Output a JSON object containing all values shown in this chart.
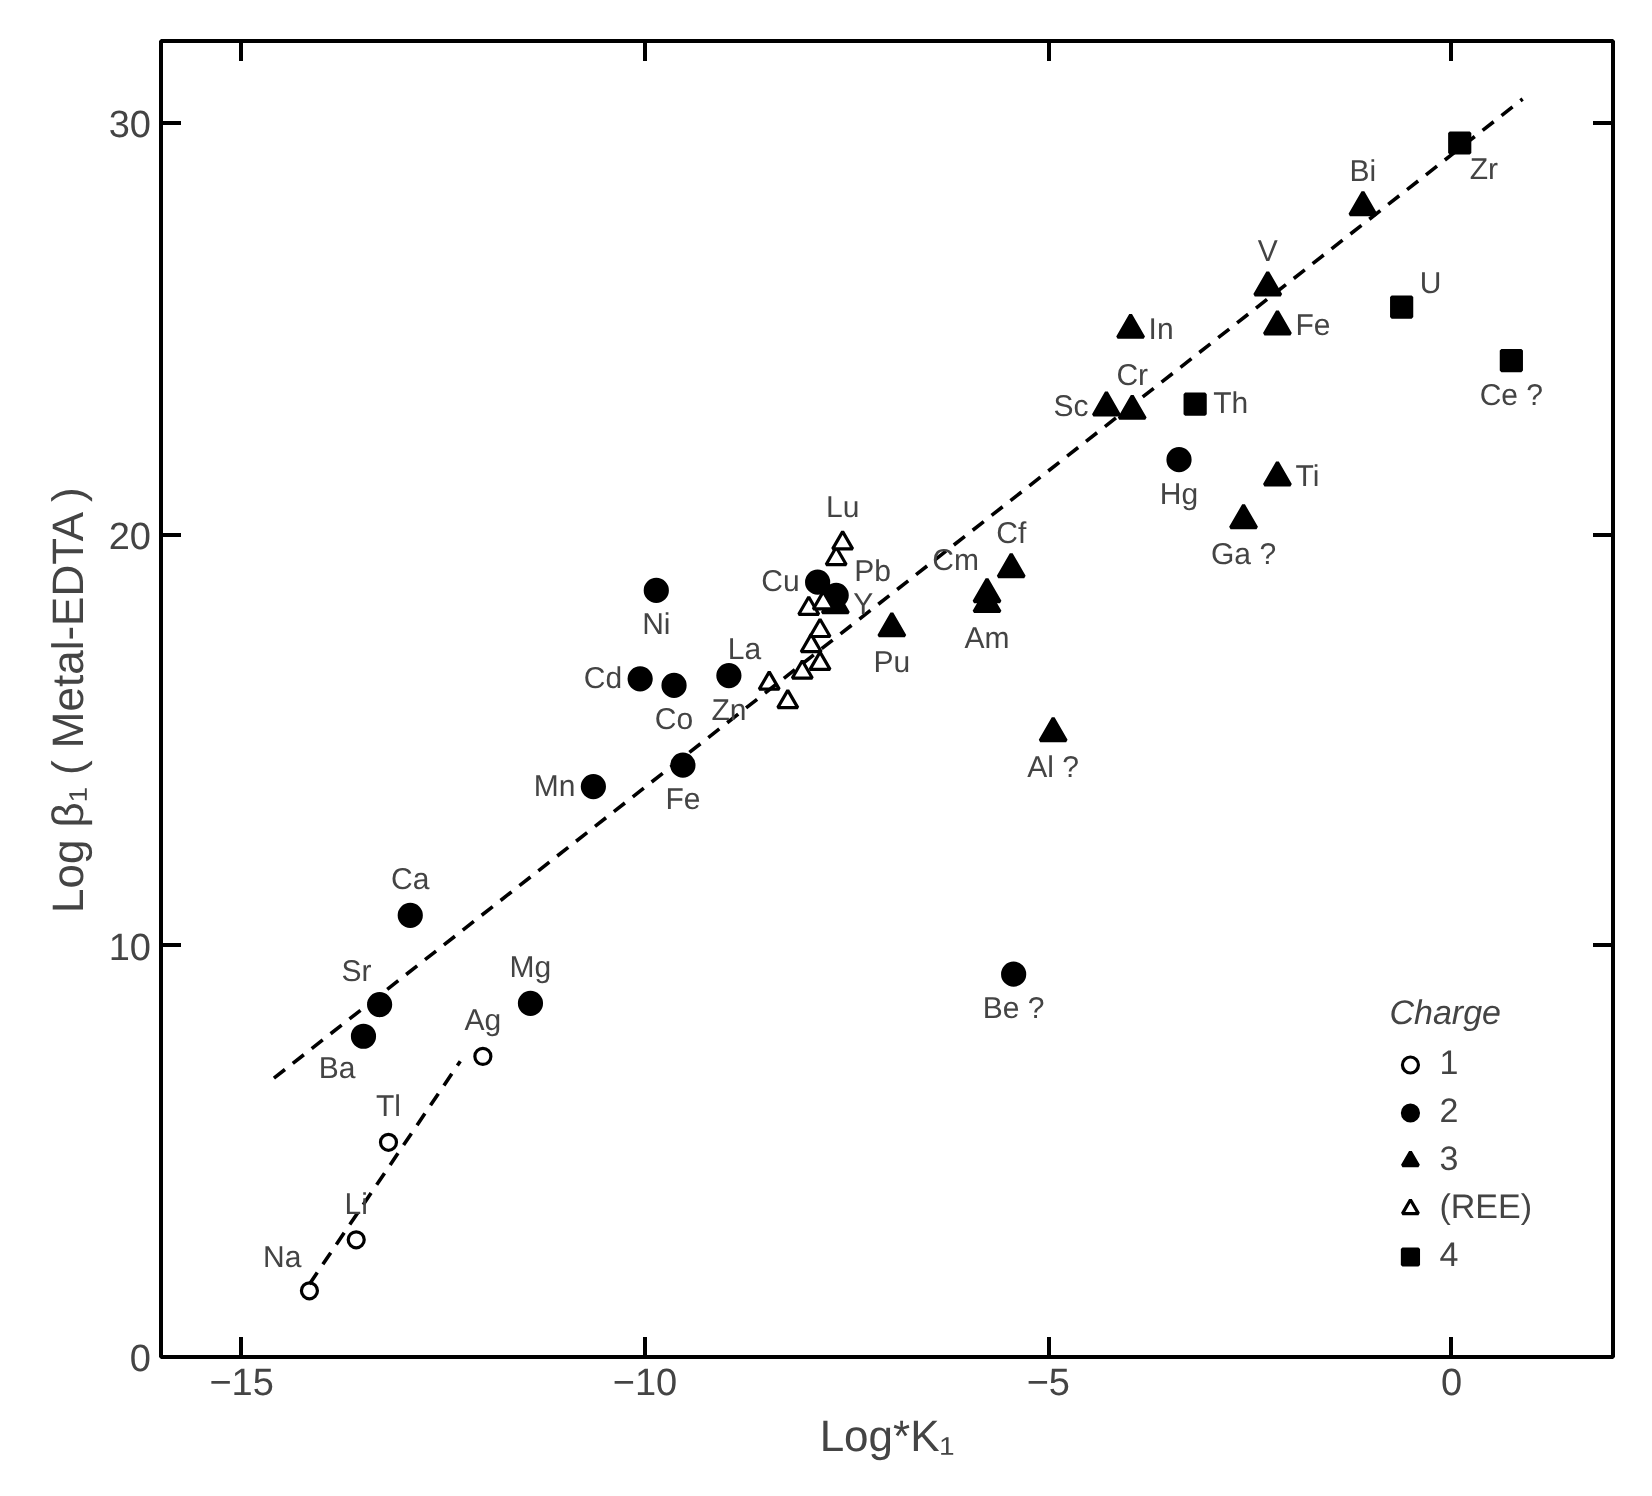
{
  "chart_data": {
    "type": "scatter",
    "xlabel": "Log*K₁",
    "ylabel": "Log β₁ ( Metal-EDTA )",
    "xlim": [
      -16,
      2
    ],
    "ylim": [
      0,
      32
    ],
    "xticks": [
      -15,
      -10,
      -5,
      0
    ],
    "yticks": [
      0,
      10,
      20,
      30
    ],
    "grid": false,
    "legend": "bottom right",
    "legend_title": "Charge",
    "series": [
      {
        "name": "1",
        "color": "#ffffff",
        "marker": "circle",
        "x": [
          -14.16,
          -13.58,
          -13.18,
          -12.01
        ],
        "values": [
          1.61,
          2.85,
          5.22,
          7.31
        ]
      },
      {
        "name": "2",
        "color": "#000000",
        "marker": "circle",
        "x": [
          -13.49,
          -13.29,
          -12.91,
          -11.42,
          -10.64,
          -9.53,
          -9.86,
          -10.06,
          -9.64,
          -8.96,
          -7.86,
          -7.63,
          -3.38,
          -5.43
        ],
        "values": [
          7.8,
          8.57,
          10.74,
          8.6,
          13.87,
          14.39,
          18.64,
          16.49,
          16.33,
          16.57,
          18.84,
          18.52,
          21.82,
          9.31
        ]
      },
      {
        "name": "3",
        "color": "#000000",
        "marker": "triangle",
        "x": [
          -7.64,
          -6.94,
          -5.76,
          -5.76,
          -5.46,
          -4.94,
          -4.28,
          -3.96,
          -3.98,
          -2.58,
          -2.16,
          -2.28,
          -2.16,
          -1.1
        ],
        "values": [
          18.28,
          17.72,
          18.55,
          18.31,
          19.16,
          15.17,
          23.09,
          23.01,
          24.98,
          20.35,
          21.39,
          26.01,
          25.06,
          27.96
        ]
      },
      {
        "name": "(REE)",
        "color": "#ffffff",
        "marker": "triangle",
        "x": [
          -8.46,
          -8.23,
          -8.05,
          -7.83,
          -7.94,
          -7.83,
          -7.97,
          -7.79,
          -7.63,
          -7.55
        ],
        "values": [
          16.38,
          15.93,
          16.65,
          16.86,
          17.29,
          17.66,
          18.2,
          18.33,
          19.41,
          19.79
        ]
      },
      {
        "name": "4",
        "color": "#000000",
        "marker": "square",
        "x": [
          -3.18,
          -0.62,
          0.1,
          0.74
        ],
        "values": [
          23.17,
          25.53,
          29.52,
          24.23
        ]
      },
      {
        "type": "line",
        "color": "#000000",
        "line_style": "dashed",
        "marker": "none",
        "x": [
          -14.6,
          0.88
        ],
        "values": [
          6.78,
          30.59
        ]
      },
      {
        "type": "line",
        "color": "#000000",
        "line_style": "dashed",
        "marker": "none",
        "x": [
          -14.16,
          -12.29
        ],
        "values": [
          1.77,
          7.19
        ]
      }
    ],
    "annotations": [
      {
        "text": "Na",
        "x": -14.16,
        "y": 1.61
      },
      {
        "text": "Li",
        "x": -13.58,
        "y": 2.85
      },
      {
        "text": "Tl",
        "x": -13.18,
        "y": 5.22
      },
      {
        "text": "Ag",
        "x": -12.01,
        "y": 7.31
      },
      {
        "text": "Mg",
        "x": -11.42,
        "y": 8.6
      },
      {
        "text": "Ba",
        "x": -13.49,
        "y": 7.8
      },
      {
        "text": "Sr",
        "x": -13.29,
        "y": 8.57
      },
      {
        "text": "Ca",
        "x": -12.91,
        "y": 10.74
      },
      {
        "text": "Mn",
        "x": -10.64,
        "y": 13.87
      },
      {
        "text": "Fe",
        "x": -9.53,
        "y": 14.39
      },
      {
        "text": "Ni",
        "x": -9.86,
        "y": 18.64
      },
      {
        "text": "Cd",
        "x": -10.06,
        "y": 16.49
      },
      {
        "text": "Co",
        "x": -9.64,
        "y": 16.33
      },
      {
        "text": "Zn",
        "x": -8.96,
        "y": 16.57
      },
      {
        "text": "La",
        "x": -8.46,
        "y": 16.38
      },
      {
        "text": "Cu",
        "x": -7.86,
        "y": 18.84
      },
      {
        "text": "Pb",
        "x": -7.63,
        "y": 18.52
      },
      {
        "text": "Y",
        "x": -7.64,
        "y": 18.28
      },
      {
        "text": "Lu",
        "x": -7.55,
        "y": 19.79
      },
      {
        "text": "Pu",
        "x": -6.94,
        "y": 17.72
      },
      {
        "text": "Cm",
        "x": -5.76,
        "y": 18.55
      },
      {
        "text": "Am",
        "x": -5.76,
        "y": 18.31
      },
      {
        "text": "Cf",
        "x": -5.46,
        "y": 19.16
      },
      {
        "text": "Al ?",
        "x": -4.94,
        "y": 15.17
      },
      {
        "text": "Be ?",
        "x": -5.43,
        "y": 9.31
      },
      {
        "text": "Sc",
        "x": -4.28,
        "y": 23.09
      },
      {
        "text": "Cr",
        "x": -3.96,
        "y": 23.01
      },
      {
        "text": "In",
        "x": -3.98,
        "y": 24.98
      },
      {
        "text": "Th",
        "x": -3.18,
        "y": 23.17
      },
      {
        "text": "Hg",
        "x": -3.38,
        "y": 21.82
      },
      {
        "text": "Ga ?",
        "x": -2.58,
        "y": 20.35
      },
      {
        "text": "Ti",
        "x": -2.16,
        "y": 21.39
      },
      {
        "text": "V",
        "x": -2.28,
        "y": 26.01
      },
      {
        "text": "Fe",
        "x": -2.16,
        "y": 25.06
      },
      {
        "text": "Bi",
        "x": -1.1,
        "y": 27.96
      },
      {
        "text": "U",
        "x": -0.62,
        "y": 25.53
      },
      {
        "text": "Zr",
        "x": 0.1,
        "y": 29.52
      },
      {
        "text": "Ce ?",
        "x": 0.74,
        "y": 24.23
      }
    ]
  }
}
